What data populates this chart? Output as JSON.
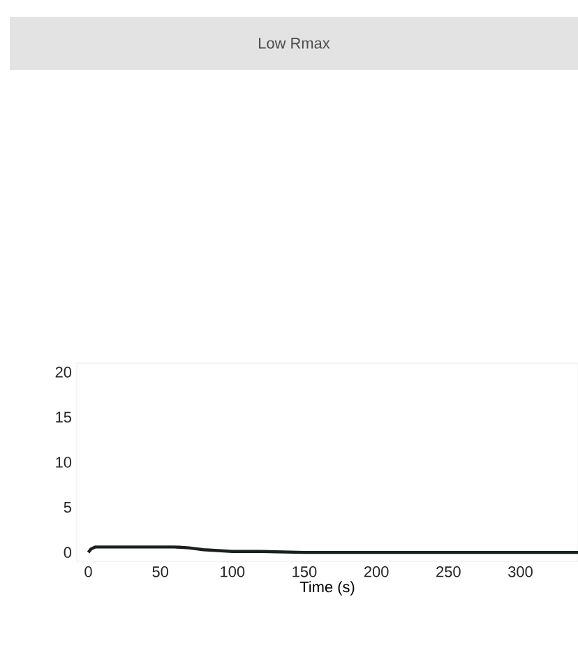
{
  "chart_data": {
    "type": "line",
    "title": "Low Rmax",
    "xlabel": "Time (s)",
    "x": [
      0,
      2,
      5,
      20,
      40,
      60,
      70,
      80,
      90,
      100,
      120,
      150,
      200,
      250,
      300,
      340
    ],
    "values": [
      0,
      0.4,
      0.6,
      0.6,
      0.6,
      0.6,
      0.5,
      0.3,
      0.2,
      0.1,
      0.1,
      0,
      0,
      0,
      0,
      0
    ],
    "color": "#1a1f1f",
    "xlim": [
      -8,
      340
    ],
    "ylim": [
      -1,
      21
    ],
    "xticks": [
      0,
      50,
      100,
      150,
      200,
      250,
      300
    ],
    "yticks": [
      0,
      5,
      10,
      15,
      20
    ]
  }
}
